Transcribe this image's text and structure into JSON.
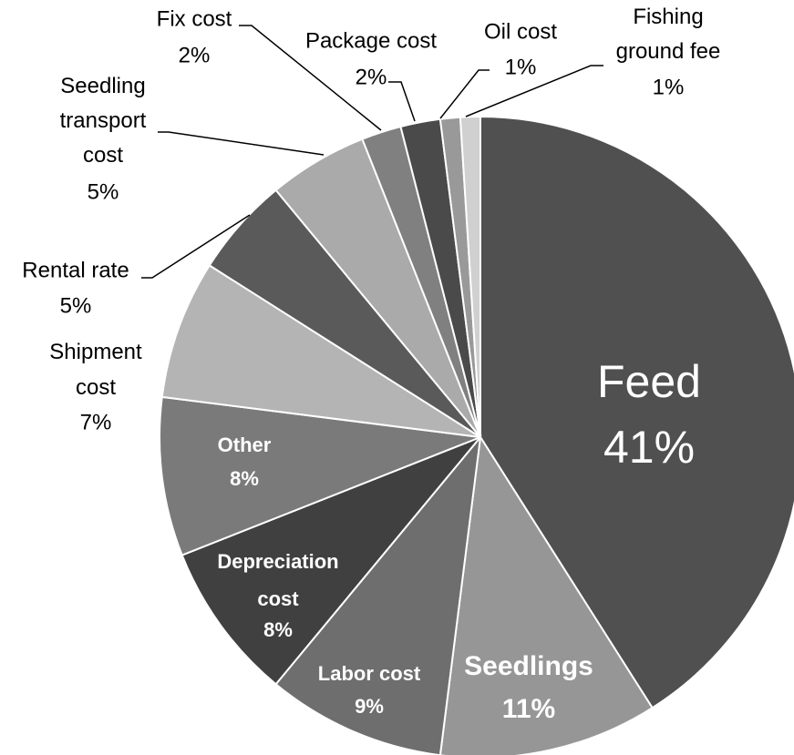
{
  "chart_data": {
    "type": "pie",
    "categories": [
      "Feed",
      "Seedlings",
      "Labor cost",
      "Depreciation cost",
      "Other",
      "Shipment cost",
      "Rental rate",
      "Seedling transport cost",
      "Fix cost",
      "Package cost",
      "Oil cost",
      "Fishing ground fee"
    ],
    "values": [
      41,
      11,
      9,
      8,
      8,
      7,
      5,
      5,
      2,
      2,
      1,
      1
    ],
    "value_labels": [
      "41%",
      "11%",
      "9%",
      "8%",
      "8%",
      "7%",
      "5%",
      "5%",
      "2%",
      "2%",
      "1%",
      "1%"
    ],
    "colors": [
      "#505050",
      "#969696",
      "#6e6e6e",
      "#404040",
      "#7a7a7a",
      "#b4b4b4",
      "#5a5a5a",
      "#aaaaaa",
      "#808080",
      "#4a4a4a",
      "#999999",
      "#d0d0d0"
    ]
  }
}
